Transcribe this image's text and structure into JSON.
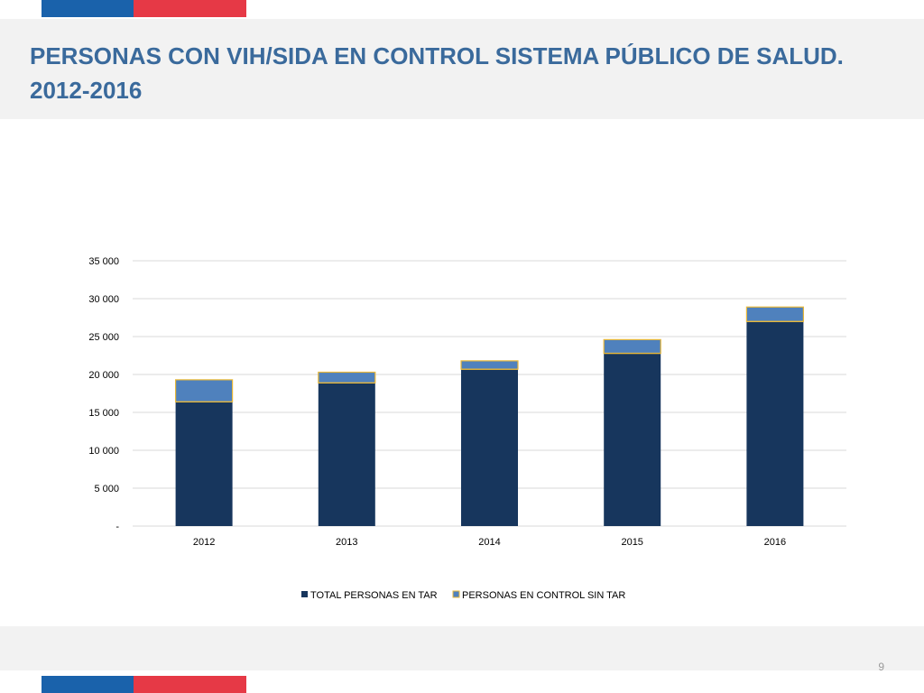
{
  "slide": {
    "title": "PERSONAS CON VIH/SIDA EN CONTROL SISTEMA PÚBLICO DE SALUD. 2012-2016",
    "page_number": "9"
  },
  "colors": {
    "flag_blue": "#1a62ab",
    "flag_red": "#e63946",
    "title": "#3a6a9c",
    "series_tar": "#17365d",
    "series_sin_tar": "#4f81bd",
    "bar_border": "#e8b83a",
    "grid": "#d9d9d9",
    "axis_text": "#000000"
  },
  "chart_data": {
    "type": "bar",
    "stacked": true,
    "categories": [
      "2012",
      "2013",
      "2014",
      "2015",
      "2016"
    ],
    "series": [
      {
        "name": "TOTAL PERSONAS EN TAR",
        "values": [
          16400,
          18900,
          20700,
          22800,
          27000
        ]
      },
      {
        "name": "PERSONAS EN CONTROL SIN TAR",
        "values": [
          2900,
          1400,
          1100,
          1800,
          1900
        ]
      }
    ],
    "ylim": [
      0,
      35000
    ],
    "y_ticks": [
      0,
      5000,
      10000,
      15000,
      20000,
      25000,
      30000,
      35000
    ],
    "y_tick_labels": [
      "-",
      "5 000",
      "10 000",
      "15 000",
      "20 000",
      "25 000",
      "30 000",
      "35 000"
    ],
    "grid": true,
    "legend_position": "bottom"
  }
}
